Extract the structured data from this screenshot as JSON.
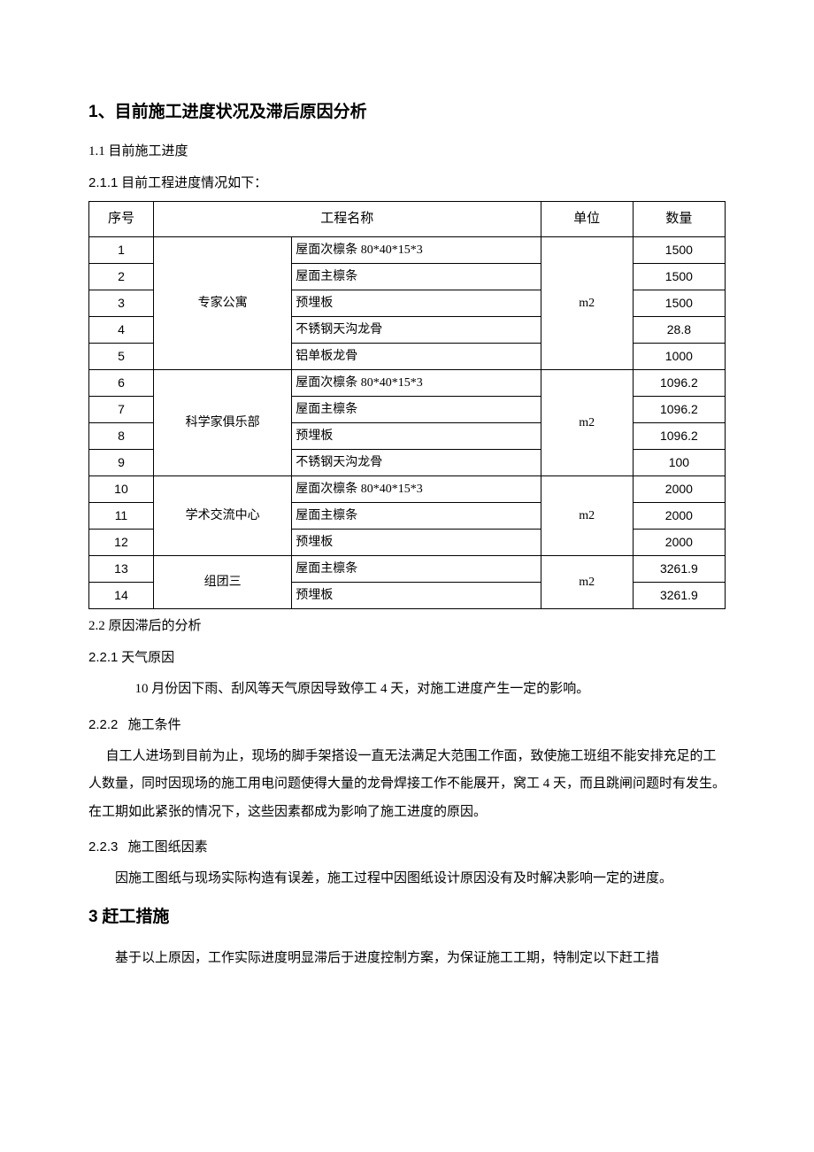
{
  "heading1": {
    "num": "1",
    "sep": "、",
    "text": "目前施工进度状况及滞后原因分析"
  },
  "section11": {
    "num": "1.1",
    "title": "目前施工进度"
  },
  "section211": {
    "num": "2.1.1",
    "title": "目前工程进度情况如下："
  },
  "table": {
    "headers": {
      "seq": "序号",
      "name": "工程名称",
      "unit": "单位",
      "qty": "数量"
    },
    "groups": [
      {
        "name": "专家公寓",
        "unit": "m2",
        "rows": [
          {
            "seq": "1",
            "item": "屋面次檩条 80*40*15*3",
            "qty": "1500"
          },
          {
            "seq": "2",
            "item": "屋面主檩条",
            "qty": "1500"
          },
          {
            "seq": "3",
            "item": "预埋板",
            "qty": "1500"
          },
          {
            "seq": "4",
            "item": "不锈钢天沟龙骨",
            "qty": "28.8"
          },
          {
            "seq": "5",
            "item": "铝单板龙骨",
            "qty": "1000"
          }
        ]
      },
      {
        "name": "科学家俱乐部",
        "unit": "m2",
        "rows": [
          {
            "seq": "6",
            "item": "屋面次檩条 80*40*15*3",
            "qty": "1096.2"
          },
          {
            "seq": "7",
            "item": "屋面主檩条",
            "qty": "1096.2"
          },
          {
            "seq": "8",
            "item": "预埋板",
            "qty": "1096.2"
          },
          {
            "seq": "9",
            "item": "不锈钢天沟龙骨",
            "qty": "100"
          }
        ]
      },
      {
        "name": "学术交流中心",
        "unit": "m2",
        "rows": [
          {
            "seq": "10",
            "item": "屋面次檩条 80*40*15*3",
            "qty": "2000"
          },
          {
            "seq": "11",
            "item": "屋面主檩条",
            "qty": "2000"
          },
          {
            "seq": "12",
            "item": "预埋板",
            "qty": "2000"
          }
        ]
      },
      {
        "name": "组团三",
        "unit": "m2",
        "rows": [
          {
            "seq": "13",
            "item": "屋面主檩条",
            "qty": "3261.9"
          },
          {
            "seq": "14",
            "item": "预埋板",
            "qty": "3261.9"
          }
        ]
      }
    ]
  },
  "section22": {
    "num": "2.2",
    "title": "原因滞后的分析"
  },
  "section221": {
    "num": "2.2.1",
    "title": "天气原因",
    "body": "10 月份因下雨、刮风等天气原因导致停工 4 天，对施工进度产生一定的影响。"
  },
  "section222": {
    "num": "2.2.2",
    "title": "施工条件",
    "body": "自工人进场到目前为止，现场的脚手架搭设一直无法满足大范围工作面，致使施工班组不能安排充足的工人数量，同时因现场的施工用电问题使得大量的龙骨焊接工作不能展开，窝工 4 天，而且跳闸问题时有发生。在工期如此紧张的情况下，这些因素都成为影响了施工进度的原因。"
  },
  "section223": {
    "num": "2.2.3",
    "title": "施工图纸因素",
    "body": "因施工图纸与现场实际构造有误差，施工过程中因图纸设计原因没有及时解决影响一定的进度。"
  },
  "heading3": {
    "num": "3",
    "text": "赶工措施"
  },
  "section3body": "基于以上原因，工作实际进度明显滞后于进度控制方案，为保证施工工期，特制定以下赶工措"
}
